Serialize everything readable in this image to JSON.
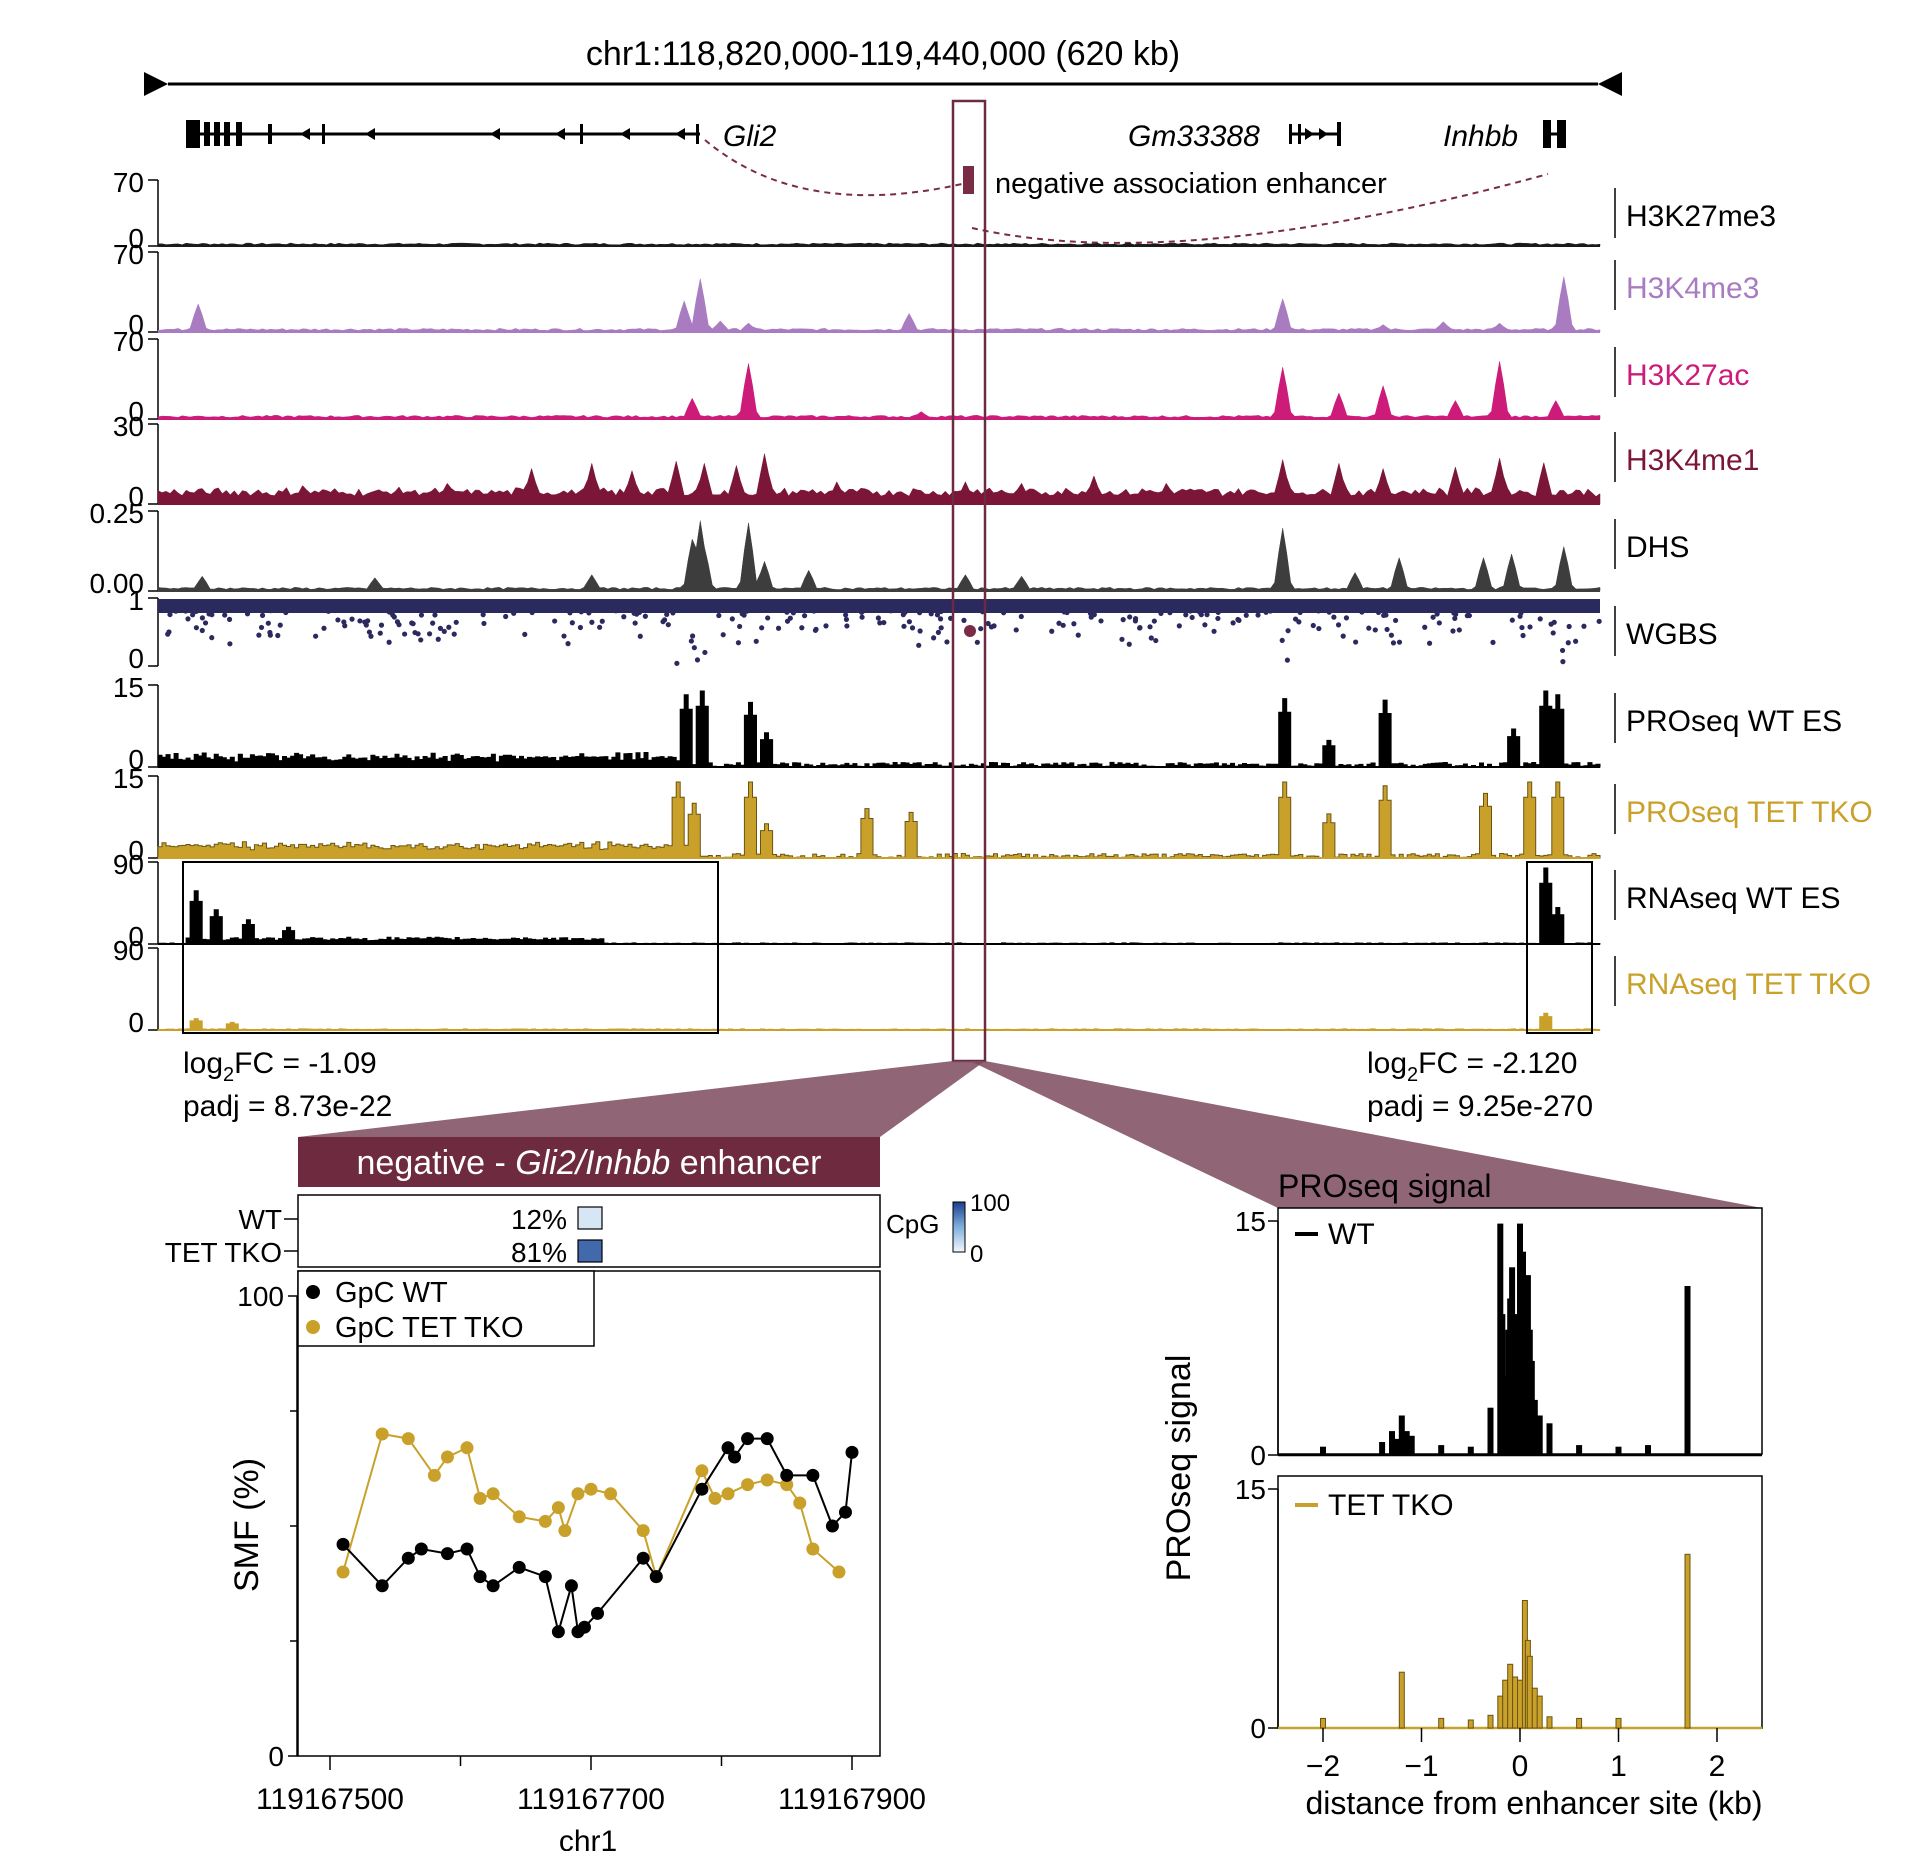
{
  "colors": {
    "black": "#000000",
    "H3K27me3": "#1a1a1a",
    "H3K4me3": "#a97cc1",
    "H3K27ac": "#cc1b78",
    "H3K4me1": "#7c1638",
    "DHS": "#3d3d3d",
    "WGBS": "#2b2a5e",
    "PROseqWT": "#000000",
    "PROseqTKO": "#c9a12a",
    "RNAseqWT": "#000000",
    "RNAseqTKO": "#c9a12a",
    "enhancer": "#7a2c45",
    "banner": "#6e2a3f",
    "wedge": "#7d4a5e"
  },
  "browser": {
    "region_label": "chr1:118,820,000-119,440,000 (620 kb)",
    "genes": [
      {
        "name": "Gli2"
      },
      {
        "name": "Gm33388"
      },
      {
        "name": "Inhbb"
      }
    ],
    "enhancer_label": "negative association enhancer",
    "tracks": [
      {
        "name": "H3K27me3",
        "ymax": "70",
        "ymin": "0",
        "type": "area",
        "color_key": "H3K27me3",
        "peaks": [
          [
            0.5,
            3
          ],
          [
            0.05,
            2
          ]
        ]
      },
      {
        "name": "H3K4me3",
        "ymax": "70",
        "ymin": "0",
        "type": "area",
        "color_key": "H3K4me3",
        "peaks": [
          [
            0.029,
            38
          ],
          [
            0.365,
            42
          ],
          [
            0.375,
            72
          ],
          [
            0.39,
            15
          ],
          [
            0.41,
            12
          ],
          [
            0.52,
            25
          ],
          [
            0.78,
            45
          ],
          [
            0.85,
            10
          ],
          [
            0.89,
            14
          ],
          [
            0.93,
            12
          ],
          [
            0.975,
            75
          ]
        ]
      },
      {
        "name": "H3K27ac",
        "ymax": "70",
        "ymin": "0",
        "type": "area",
        "color_key": "H3K27ac",
        "peaks": [
          [
            0.37,
            28
          ],
          [
            0.41,
            75
          ],
          [
            0.53,
            10
          ],
          [
            0.78,
            70
          ],
          [
            0.82,
            35
          ],
          [
            0.85,
            45
          ],
          [
            0.9,
            25
          ],
          [
            0.93,
            78
          ],
          [
            0.97,
            25
          ]
        ]
      },
      {
        "name": "H3K4me1",
        "ymax": "30",
        "ymin": "0",
        "type": "area",
        "color_key": "H3K4me1",
        "peaks": [
          [
            0.1,
            25
          ],
          [
            0.2,
            28
          ],
          [
            0.26,
            48
          ],
          [
            0.3,
            55
          ],
          [
            0.33,
            45
          ],
          [
            0.36,
            58
          ],
          [
            0.38,
            55
          ],
          [
            0.4,
            52
          ],
          [
            0.42,
            68
          ],
          [
            0.47,
            30
          ],
          [
            0.56,
            30
          ],
          [
            0.6,
            28
          ],
          [
            0.65,
            38
          ],
          [
            0.7,
            28
          ],
          [
            0.78,
            60
          ],
          [
            0.82,
            55
          ],
          [
            0.85,
            48
          ],
          [
            0.9,
            50
          ],
          [
            0.93,
            62
          ],
          [
            0.96,
            56
          ]
        ]
      },
      {
        "name": "DHS",
        "ymax": "0.25",
        "ymin": "0.00",
        "type": "area",
        "color_key": "DHS",
        "peaks": [
          [
            0.03,
            20
          ],
          [
            0.15,
            18
          ],
          [
            0.3,
            22
          ],
          [
            0.37,
            70
          ],
          [
            0.375,
            95
          ],
          [
            0.38,
            60
          ],
          [
            0.41,
            92
          ],
          [
            0.42,
            40
          ],
          [
            0.45,
            28
          ],
          [
            0.56,
            22
          ],
          [
            0.6,
            20
          ],
          [
            0.78,
            85
          ],
          [
            0.83,
            25
          ],
          [
            0.86,
            45
          ],
          [
            0.92,
            45
          ],
          [
            0.94,
            50
          ],
          [
            0.975,
            60
          ]
        ]
      },
      {
        "name": "WGBS",
        "ymax": "1",
        "ymin": "0",
        "type": "dots",
        "color_key": "WGBS"
      },
      {
        "name": "PROseq WT ES",
        "ymax": "15",
        "ymin": "0",
        "type": "bars",
        "color_key": "PROseqWT",
        "peaks": [
          [
            0.365,
            95
          ],
          [
            0.375,
            100
          ],
          [
            0.41,
            85
          ],
          [
            0.42,
            45
          ],
          [
            0.78,
            90
          ],
          [
            0.81,
            35
          ],
          [
            0.85,
            88
          ],
          [
            0.94,
            50
          ],
          [
            0.96,
            100
          ],
          [
            0.97,
            95
          ]
        ]
      },
      {
        "name": "PROseq TET TKO",
        "ymax": "15",
        "ymin": "0",
        "type": "bars",
        "color_key": "PROseqTKO",
        "peaks": [
          [
            0.36,
            100
          ],
          [
            0.37,
            72
          ],
          [
            0.41,
            100
          ],
          [
            0.42,
            45
          ],
          [
            0.49,
            65
          ],
          [
            0.52,
            60
          ],
          [
            0.78,
            100
          ],
          [
            0.81,
            58
          ],
          [
            0.85,
            95
          ],
          [
            0.92,
            85
          ],
          [
            0.95,
            100
          ],
          [
            0.97,
            100
          ]
        ]
      },
      {
        "name": "RNAseq WT ES",
        "ymax": "90",
        "ymin": "0",
        "type": "bars",
        "color_key": "RNAseqWT",
        "peaks": [
          [
            0.025,
            70
          ],
          [
            0.04,
            45
          ],
          [
            0.06,
            32
          ],
          [
            0.09,
            22
          ],
          [
            0.96,
            100
          ],
          [
            0.97,
            48
          ]
        ]
      },
      {
        "name": "RNAseq TET TKO",
        "ymax": "90",
        "ymin": "0",
        "type": "bars",
        "color_key": "RNAseqTKO",
        "peaks": [
          [
            0.025,
            15
          ],
          [
            0.05,
            10
          ],
          [
            0.96,
            22
          ]
        ]
      }
    ],
    "left_stats": {
      "line1_pre": "log",
      "line1_sub": "2",
      "line1_post": "FC = -1.09",
      "line2": "padj = 8.73e-22"
    },
    "right_stats": {
      "line1_pre": "log",
      "line1_sub": "2",
      "line1_post": "FC = -2.120",
      "line2": "padj = 9.25e-270"
    }
  },
  "chart_data": [
    {
      "type": "heatmap",
      "title_pre": "negative - ",
      "title_italic": "Gli2/Inhbb",
      "title_post": " enhancer",
      "rows": [
        {
          "label": "WT",
          "value_label": "12%",
          "value": 12
        },
        {
          "label": "TET TKO",
          "value_label": "81%",
          "value": 81
        }
      ],
      "colorbar": {
        "label": "CpG",
        "max": "100",
        "min": "0"
      }
    },
    {
      "type": "line",
      "xlabel": "chr1",
      "ylabel": "SMF (%)",
      "xlim": [
        119167475,
        119167920
      ],
      "ylim": [
        0,
        100
      ],
      "xticks": [
        119167500,
        119167700,
        119167900
      ],
      "xtick_labels": [
        "119167500",
        "119167700",
        "119167900"
      ],
      "yticks": [
        "0",
        "100"
      ],
      "series": [
        {
          "name": "GpC WT",
          "color_key": "black",
          "x": [
            119167510,
            119167540,
            119167560,
            119167570,
            119167590,
            119167605,
            119167615,
            119167625,
            119167645,
            119167665,
            119167675,
            119167685,
            119167690,
            119167695,
            119167705,
            119167740,
            119167750,
            119167785,
            119167805,
            119167810,
            119167820,
            119167835,
            119167850,
            119167870,
            119167885,
            119167895,
            119167900
          ],
          "y": [
            46,
            37,
            43,
            45,
            44,
            45,
            39,
            37,
            41,
            39,
            27,
            37,
            27,
            28,
            31,
            43,
            39,
            58,
            67,
            65,
            69,
            69,
            61,
            61,
            50,
            53,
            66
          ]
        },
        {
          "name": "GpC TET TKO",
          "color_key": "PROseqTKO",
          "x": [
            119167510,
            119167540,
            119167560,
            119167580,
            119167590,
            119167605,
            119167615,
            119167625,
            119167645,
            119167665,
            119167675,
            119167680,
            119167690,
            119167700,
            119167715,
            119167740,
            119167750,
            119167785,
            119167795,
            119167805,
            119167820,
            119167835,
            119167850,
            119167860,
            119167870,
            119167890
          ],
          "y": [
            40,
            70,
            69,
            61,
            65,
            67,
            56,
            57,
            52,
            51,
            54,
            49,
            57,
            58,
            57,
            49,
            39,
            62,
            56,
            57,
            59,
            60,
            59,
            55,
            45,
            40
          ]
        }
      ]
    },
    {
      "type": "bar",
      "title": "PROseq signal",
      "ylabel": "PROseq signal",
      "xlabel": "distance from enhancer site (kb)",
      "xlim": [
        -2.5,
        2.5
      ],
      "xticks": [
        -2,
        -1,
        0,
        1,
        2
      ],
      "xtick_labels": [
        "−2",
        "−1",
        "0",
        "1",
        "2"
      ],
      "series": [
        {
          "name": "WT",
          "color_key": "black",
          "ylim": [
            0,
            15
          ],
          "ytick_labels": [
            "0",
            "15"
          ],
          "x": [
            -2.0,
            -1.4,
            -1.3,
            -1.25,
            -1.2,
            -1.15,
            -1.1,
            -0.8,
            -0.5,
            -0.3,
            -0.2,
            -0.18,
            -0.15,
            -0.12,
            -0.1,
            -0.08,
            -0.05,
            -0.03,
            0.0,
            0.03,
            0.05,
            0.08,
            0.1,
            0.12,
            0.15,
            0.2,
            0.3,
            0.6,
            1.0,
            1.3,
            1.7
          ],
          "y": [
            0.5,
            0.8,
            1.5,
            1.0,
            2.5,
            1.5,
            1.2,
            0.6,
            0.5,
            3.0,
            14.8,
            9.0,
            5.0,
            8.0,
            10.0,
            12.0,
            4.0,
            9.0,
            14.8,
            13.0,
            10.0,
            11.5,
            8.0,
            6.0,
            3.5,
            2.5,
            2.0,
            0.6,
            0.5,
            0.6,
            10.8
          ]
        },
        {
          "name": "TET TKO",
          "color_key": "PROseqTKO",
          "ylim": [
            0,
            15
          ],
          "ytick_labels": [
            "0",
            "15"
          ],
          "x": [
            -2.0,
            -1.2,
            -0.8,
            -0.5,
            -0.3,
            -0.2,
            -0.15,
            -0.1,
            -0.05,
            0.0,
            0.05,
            0.08,
            0.1,
            0.15,
            0.2,
            0.3,
            0.6,
            1.0,
            1.7
          ],
          "y": [
            0.6,
            3.5,
            0.6,
            0.5,
            0.8,
            2.0,
            3.0,
            4.0,
            3.2,
            3.0,
            8.0,
            5.5,
            4.5,
            2.5,
            2.0,
            0.7,
            0.6,
            0.6,
            10.9
          ]
        }
      ]
    }
  ]
}
